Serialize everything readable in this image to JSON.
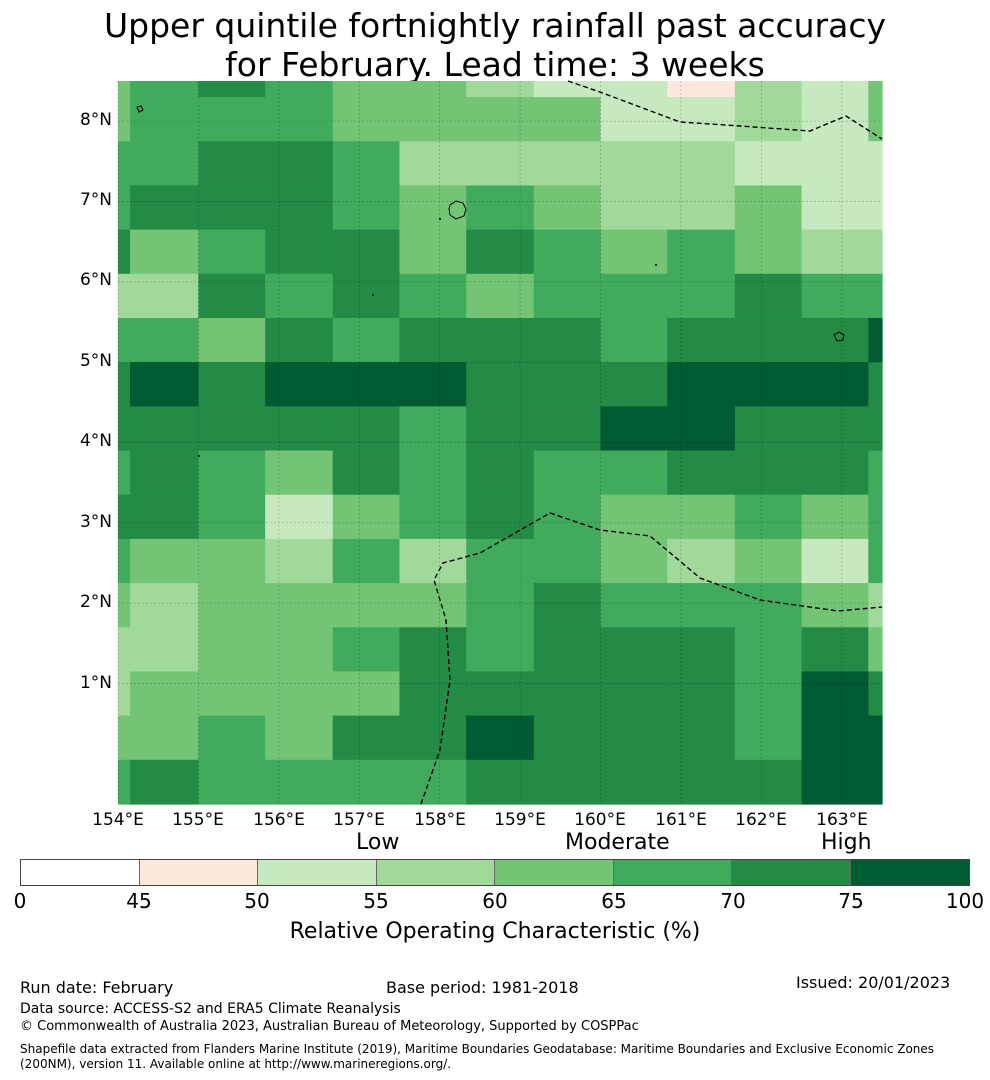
{
  "title": {
    "line1": "Upper quintile fortnightly rainfall past accuracy",
    "line2": "for February. Lead time: 3 weeks"
  },
  "map": {
    "latitude_labels": [
      "8°N",
      "7°N",
      "6°N",
      "5°N",
      "4°N",
      "3°N",
      "2°N",
      "1°N"
    ],
    "longitude_labels": [
      "154°E",
      "155°E",
      "156°E",
      "157°E",
      "158°E",
      "159°E",
      "160°E",
      "161°E",
      "162°E",
      "163°E"
    ],
    "lon_min": 154,
    "lon_max": 163.5,
    "lat_min": -0.5,
    "lat_max": 8.5,
    "cell_lon_edges": [
      154,
      154.15,
      155,
      155.83,
      156.67,
      157.5,
      158.33,
      159.17,
      160,
      160.83,
      161.67,
      162.5,
      163.33,
      163.5
    ],
    "cell_lat_edges": [
      8.5,
      8.3,
      7.75,
      7.2,
      6.65,
      6.1,
      5.55,
      5.0,
      4.45,
      3.9,
      3.35,
      2.8,
      2.25,
      1.7,
      1.15,
      0.6,
      0.05,
      -0.5
    ],
    "roc_grid": [
      [
        62,
        67,
        72,
        67,
        62,
        62,
        57,
        53,
        53,
        48,
        57,
        53,
        62
      ],
      [
        62,
        67,
        67,
        67,
        62,
        62,
        62,
        62,
        53,
        53,
        57,
        53,
        62
      ],
      [
        67,
        67,
        72,
        72,
        67,
        57,
        57,
        57,
        57,
        57,
        53,
        53,
        53
      ],
      [
        67,
        72,
        72,
        72,
        67,
        62,
        67,
        62,
        57,
        57,
        62,
        53,
        53
      ],
      [
        72,
        62,
        67,
        72,
        72,
        62,
        72,
        67,
        62,
        67,
        62,
        57,
        57
      ],
      [
        57,
        57,
        72,
        67,
        72,
        67,
        62,
        67,
        67,
        67,
        72,
        67,
        67
      ],
      [
        67,
        67,
        62,
        72,
        67,
        72,
        72,
        72,
        67,
        72,
        72,
        72,
        77
      ],
      [
        72,
        77,
        72,
        77,
        77,
        77,
        72,
        72,
        72,
        77,
        77,
        77,
        72
      ],
      [
        72,
        72,
        72,
        72,
        72,
        67,
        72,
        72,
        77,
        77,
        72,
        72,
        72
      ],
      [
        67,
        72,
        67,
        62,
        72,
        67,
        72,
        67,
        67,
        72,
        72,
        72,
        67
      ],
      [
        72,
        72,
        67,
        53,
        62,
        67,
        72,
        67,
        62,
        62,
        67,
        62,
        67
      ],
      [
        67,
        62,
        62,
        57,
        67,
        57,
        67,
        67,
        62,
        57,
        62,
        53,
        67
      ],
      [
        62,
        57,
        62,
        62,
        62,
        62,
        67,
        72,
        67,
        67,
        67,
        62,
        57
      ],
      [
        57,
        57,
        62,
        62,
        67,
        72,
        67,
        72,
        72,
        72,
        67,
        72,
        62
      ],
      [
        57,
        62,
        62,
        62,
        62,
        72,
        72,
        72,
        72,
        72,
        67,
        77,
        72
      ],
      [
        62,
        62,
        67,
        62,
        72,
        72,
        77,
        72,
        72,
        72,
        67,
        77,
        77
      ],
      [
        67,
        72,
        67,
        67,
        67,
        67,
        72,
        72,
        72,
        72,
        72,
        77,
        77
      ]
    ]
  },
  "colorbar": {
    "category_labels": [
      "Low",
      "Moderate",
      "High"
    ],
    "ticks": [
      "0",
      "45",
      "50",
      "55",
      "60",
      "65",
      "70",
      "75",
      "100"
    ],
    "bins": [
      {
        "from": 0,
        "to": 45,
        "color": "#ffffff"
      },
      {
        "from": 45,
        "to": 50,
        "color": "#fee8de"
      },
      {
        "from": 50,
        "to": 55,
        "color": "#c7e9c0"
      },
      {
        "from": 55,
        "to": 60,
        "color": "#a1d99b"
      },
      {
        "from": 60,
        "to": 65,
        "color": "#74c476"
      },
      {
        "from": 65,
        "to": 70,
        "color": "#41ab5d"
      },
      {
        "from": 70,
        "to": 75,
        "color": "#238b45"
      },
      {
        "from": 75,
        "to": 100,
        "color": "#005a32"
      }
    ],
    "axis_label": "Relative Operating Characteristic (%)"
  },
  "footer": {
    "run_date": "Run date: February",
    "base_period": "Base period: 1981-2018",
    "issued": "Issued: 20/01/2023",
    "data_source": "Data source: ACCESS-S2 and ERA5 Climate Reanalysis",
    "copyright": "© Commonwealth of Australia 2023, Australian Bureau of Meteorology, Supported by COSPPac",
    "shapefile_note": "Shapefile data extracted from Flanders Marine Institute (2019), Maritime Boundaries Geodatabase: Maritime Boundaries and Exclusive Economic Zones (200NM), version 11. Available online at http://www.marineregions.org/."
  }
}
